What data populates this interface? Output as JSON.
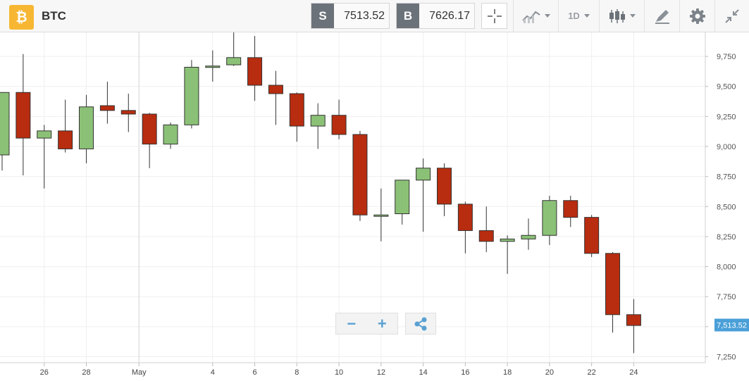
{
  "header": {
    "coin_icon": "bitcoin-icon",
    "coin_glyph": "₿",
    "symbol": "BTC",
    "sell_tag": "S",
    "sell_price": "7513.52",
    "buy_tag": "B",
    "buy_price": "7626.17",
    "timeframe": "1D",
    "tools": [
      "crosshair-icon",
      "line-chart-icon",
      "candlestick-icon",
      "draw-icon",
      "gear-icon",
      "collapse-icon"
    ]
  },
  "colors": {
    "up": "#8bc176",
    "down": "#b82c0f",
    "current_price_tag": "#4a9fd8",
    "accent": "#5aa0d2"
  },
  "controls": {
    "zoom_out": "−",
    "zoom_in": "+",
    "share_icon": "share-icon"
  },
  "chart_data": {
    "type": "candlestick",
    "grid": true,
    "ylim": [
      7200,
      9950
    ],
    "y_ticks": [
      "7,250",
      "7,500",
      "7,750",
      "8,000",
      "8,250",
      "8,500",
      "8,750",
      "9,000",
      "9,250",
      "9,500",
      "9,750"
    ],
    "y_tick_values": [
      7250,
      7500,
      7750,
      8000,
      8250,
      8500,
      8750,
      9000,
      9250,
      9500,
      9750
    ],
    "x_ticks": [
      {
        "label": "4",
        "day": -3
      },
      {
        "label": "26",
        "day": 26
      },
      {
        "label": "28",
        "day": 28
      },
      {
        "label": "May",
        "day": 30.5
      },
      {
        "label": "4",
        "day": 34
      },
      {
        "label": "6",
        "day": 36
      },
      {
        "label": "8",
        "day": 38
      },
      {
        "label": "10",
        "day": 40
      },
      {
        "label": "12",
        "day": 42
      },
      {
        "label": "14",
        "day": 44
      },
      {
        "label": "16",
        "day": 46
      },
      {
        "label": "18",
        "day": 48
      },
      {
        "label": "20",
        "day": 50
      },
      {
        "label": "22",
        "day": 52
      },
      {
        "label": "24",
        "day": 54
      }
    ],
    "x_range": [
      23.9,
      57.4
    ],
    "current_price": 7513.52,
    "current_price_label": "7,513.52",
    "candles": [
      {
        "day": 24,
        "open": 8930,
        "high": 9450,
        "low": 8800,
        "close": 9450
      },
      {
        "day": 25,
        "open": 9450,
        "high": 9770,
        "low": 8760,
        "close": 9070
      },
      {
        "day": 26,
        "open": 9070,
        "high": 9180,
        "low": 8650,
        "close": 9130
      },
      {
        "day": 27,
        "open": 9130,
        "high": 9390,
        "low": 8950,
        "close": 8980
      },
      {
        "day": 28,
        "open": 8980,
        "high": 9430,
        "low": 8860,
        "close": 9330
      },
      {
        "day": 29,
        "open": 9340,
        "high": 9540,
        "low": 9190,
        "close": 9300
      },
      {
        "day": 30,
        "open": 9300,
        "high": 9440,
        "low": 9120,
        "close": 9270
      },
      {
        "day": 31,
        "open": 9270,
        "high": 9280,
        "low": 8820,
        "close": 9020
      },
      {
        "day": 32,
        "open": 9020,
        "high": 9200,
        "low": 8980,
        "close": 9180
      },
      {
        "day": 33,
        "open": 9180,
        "high": 9720,
        "low": 9150,
        "close": 9660
      },
      {
        "day": 34,
        "open": 9660,
        "high": 9800,
        "low": 9540,
        "close": 9670
      },
      {
        "day": 35,
        "open": 9680,
        "high": 9950,
        "low": 9670,
        "close": 9740
      },
      {
        "day": 36,
        "open": 9740,
        "high": 9920,
        "low": 9380,
        "close": 9510
      },
      {
        "day": 37,
        "open": 9510,
        "high": 9630,
        "low": 9180,
        "close": 9440
      },
      {
        "day": 38,
        "open": 9440,
        "high": 9450,
        "low": 9040,
        "close": 9170
      },
      {
        "day": 39,
        "open": 9170,
        "high": 9360,
        "low": 8980,
        "close": 9260
      },
      {
        "day": 40,
        "open": 9260,
        "high": 9390,
        "low": 9060,
        "close": 9100
      },
      {
        "day": 41,
        "open": 9100,
        "high": 9130,
        "low": 8380,
        "close": 8430
      },
      {
        "day": 42,
        "open": 8430,
        "high": 8650,
        "low": 8210,
        "close": 8430
      },
      {
        "day": 43,
        "open": 8440,
        "high": 8720,
        "low": 8350,
        "close": 8720
      },
      {
        "day": 44,
        "open": 8720,
        "high": 8900,
        "low": 8290,
        "close": 8820
      },
      {
        "day": 45,
        "open": 8820,
        "high": 8860,
        "low": 8420,
        "close": 8520
      },
      {
        "day": 46,
        "open": 8520,
        "high": 8540,
        "low": 8110,
        "close": 8300
      },
      {
        "day": 47,
        "open": 8300,
        "high": 8500,
        "low": 8120,
        "close": 8210
      },
      {
        "day": 48,
        "open": 8210,
        "high": 8260,
        "low": 7940,
        "close": 8230
      },
      {
        "day": 49,
        "open": 8230,
        "high": 8400,
        "low": 8140,
        "close": 8260
      },
      {
        "day": 50,
        "open": 8260,
        "high": 8590,
        "low": 8180,
        "close": 8550
      },
      {
        "day": 51,
        "open": 8550,
        "high": 8590,
        "low": 8330,
        "close": 8410
      },
      {
        "day": 52,
        "open": 8410,
        "high": 8430,
        "low": 8080,
        "close": 8110
      },
      {
        "day": 53,
        "open": 8110,
        "high": 8120,
        "low": 7450,
        "close": 7600
      },
      {
        "day": 54,
        "open": 7600,
        "high": 7730,
        "low": 7280,
        "close": 7510
      }
    ]
  }
}
